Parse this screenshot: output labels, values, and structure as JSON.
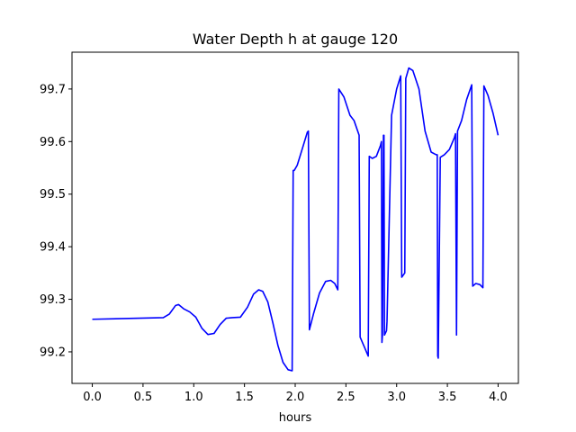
{
  "chart_data": {
    "type": "line",
    "title": "Water Depth h at gauge 120",
    "xlabel": "hours",
    "ylabel": "",
    "xlim": [
      -0.2,
      4.2
    ],
    "ylim": [
      99.14,
      99.77
    ],
    "xticks": [
      0.0,
      0.5,
      1.0,
      1.5,
      2.0,
      2.5,
      3.0,
      3.5,
      4.0
    ],
    "xtick_labels": [
      "0.0",
      "0.5",
      "1.0",
      "1.5",
      "2.0",
      "2.5",
      "3.0",
      "3.5",
      "4.0"
    ],
    "yticks": [
      99.2,
      99.3,
      99.4,
      99.5,
      99.6,
      99.7
    ],
    "ytick_labels": [
      "99.2",
      "99.3",
      "99.4",
      "99.5",
      "99.6",
      "99.7"
    ],
    "grid": false,
    "line_color": "#0000ff",
    "series": [
      {
        "x": [
          0.0,
          0.7,
          0.76,
          0.82,
          0.85,
          0.9,
          0.96,
          1.02,
          1.08,
          1.14,
          1.2,
          1.26,
          1.32,
          1.38,
          1.46,
          1.53,
          1.59,
          1.64,
          1.68,
          1.73,
          1.78,
          1.83,
          1.88,
          1.93,
          1.97,
          1.98,
          1.99,
          2.02,
          2.06,
          2.12,
          2.13,
          2.14,
          2.18,
          2.24,
          2.3,
          2.35,
          2.39,
          2.42,
          2.43,
          2.48,
          2.54,
          2.58,
          2.63,
          2.64,
          2.68,
          2.72,
          2.73,
          2.76,
          2.8,
          2.84,
          2.85,
          2.855,
          2.86,
          2.87,
          2.875,
          2.88,
          2.9,
          2.905,
          2.95,
          3.0,
          3.04,
          3.05,
          3.08,
          3.09,
          3.12,
          3.16,
          3.22,
          3.28,
          3.34,
          3.39,
          3.4,
          3.405,
          3.41,
          3.43,
          3.47,
          3.52,
          3.57,
          3.58,
          3.59,
          3.6,
          3.64,
          3.69,
          3.74,
          3.75,
          3.78,
          3.82,
          3.85,
          3.86,
          3.9,
          3.95,
          4.0
        ],
        "y": [
          99.262,
          99.265,
          99.272,
          99.288,
          99.29,
          99.282,
          99.276,
          99.266,
          99.245,
          99.233,
          99.235,
          99.252,
          99.264,
          99.265,
          99.266,
          99.285,
          99.31,
          99.318,
          99.315,
          99.295,
          99.255,
          99.212,
          99.18,
          99.166,
          99.164,
          99.545,
          99.545,
          99.555,
          99.58,
          99.618,
          99.62,
          99.242,
          99.272,
          99.312,
          99.334,
          99.336,
          99.33,
          99.318,
          99.7,
          99.685,
          99.65,
          99.64,
          99.612,
          99.228,
          99.21,
          99.192,
          99.572,
          99.568,
          99.572,
          99.592,
          99.6,
          99.218,
          99.232,
          99.612,
          99.612,
          99.232,
          99.24,
          99.258,
          99.65,
          99.7,
          99.725,
          99.342,
          99.35,
          99.72,
          99.74,
          99.735,
          99.7,
          99.62,
          99.58,
          99.575,
          99.575,
          99.192,
          99.188,
          99.57,
          99.575,
          99.585,
          99.608,
          99.615,
          99.232,
          99.62,
          99.64,
          99.68,
          99.708,
          99.325,
          99.33,
          99.328,
          99.322,
          99.706,
          99.688,
          99.654,
          99.612
        ]
      }
    ]
  }
}
